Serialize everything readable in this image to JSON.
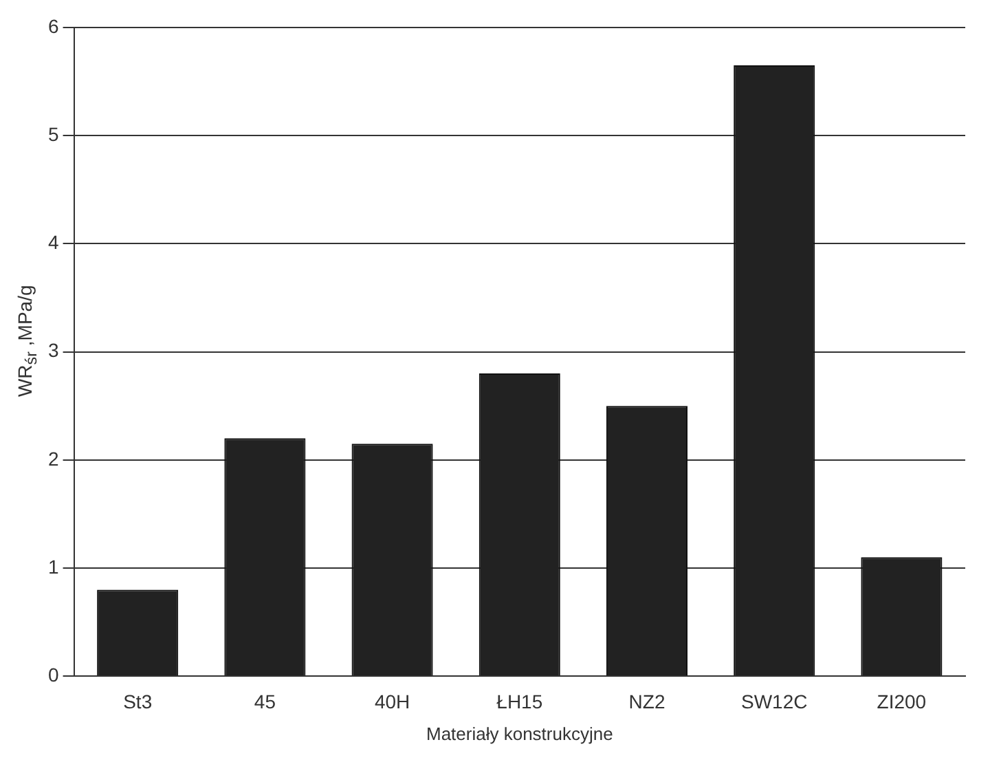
{
  "chart_data": {
    "type": "bar",
    "xlabel": "Materiały konstrukcyjne",
    "ylabel": "WR$_{śr}$ ,MPa/g",
    "categories": [
      "St3",
      "45",
      "40H",
      "ŁH15",
      "NZ2",
      "SW12C",
      "ZI200"
    ],
    "values": [
      0.8,
      2.2,
      2.15,
      2.8,
      2.5,
      5.65,
      1.1
    ],
    "color": "#222222",
    "ylim": [
      0,
      6
    ],
    "yticks": [
      0,
      1,
      2,
      3,
      4,
      5,
      6
    ],
    "grid": "y"
  }
}
